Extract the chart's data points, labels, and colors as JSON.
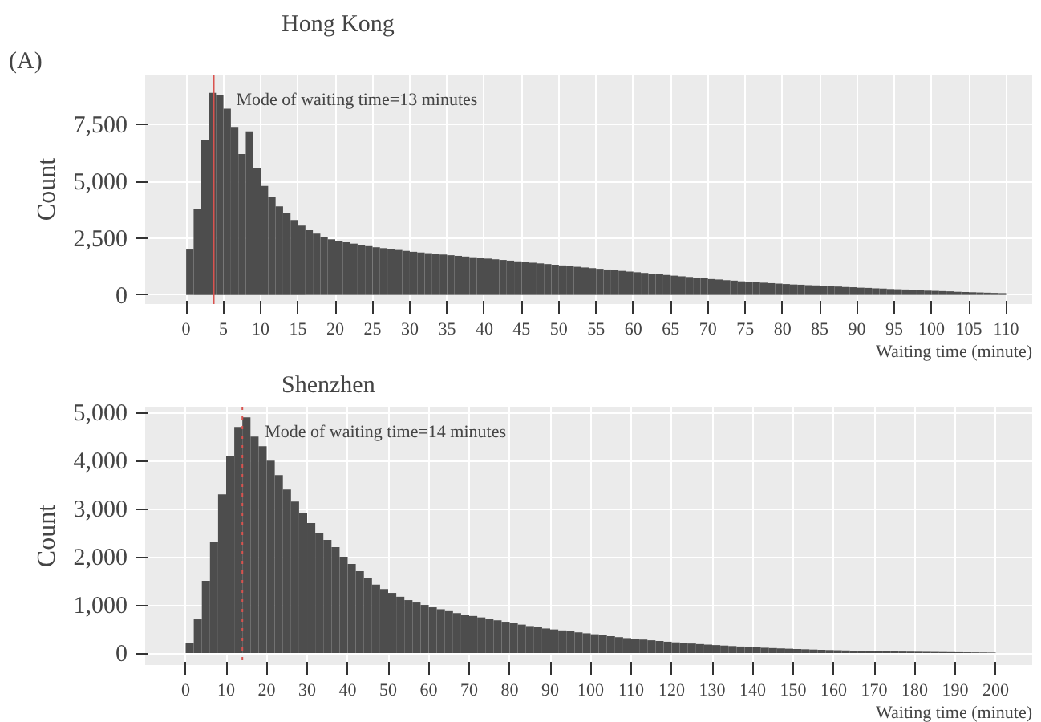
{
  "chart_data": [
    {
      "type": "histogram",
      "title": "Hong Kong",
      "xlabel": "Waiting time (minute)",
      "ylabel": "Count",
      "color": "#4d4d4d",
      "bins": [
        0,
        1,
        2,
        3,
        4,
        5,
        6,
        7,
        8,
        9,
        10,
        11,
        12,
        13,
        14,
        15,
        16,
        17,
        18,
        19,
        20,
        21,
        22,
        23,
        24,
        25,
        26,
        27,
        28,
        29,
        30,
        31,
        32,
        33,
        34,
        35,
        36,
        37,
        38,
        39,
        40,
        41,
        42,
        43,
        44,
        45,
        46,
        47,
        48,
        49,
        50,
        51,
        52,
        53,
        54,
        55,
        56,
        57,
        58,
        59,
        60,
        61,
        62,
        63,
        64,
        65,
        66,
        67,
        68,
        69,
        70,
        71,
        72,
        73,
        74,
        75,
        76,
        77,
        78,
        79,
        80,
        81,
        82,
        83,
        84,
        85,
        86,
        87,
        88,
        89,
        90,
        91,
        92,
        93,
        94,
        95,
        96,
        97,
        98,
        99,
        100,
        101,
        102,
        103,
        104,
        105,
        106,
        107,
        108,
        109,
        110
      ],
      "values": [
        2000,
        3800,
        6800,
        8900,
        8800,
        8200,
        7400,
        6200,
        7200,
        5600,
        4800,
        4300,
        3900,
        3600,
        3300,
        3050,
        2850,
        2700,
        2550,
        2450,
        2380,
        2320,
        2260,
        2200,
        2150,
        2100,
        2060,
        2020,
        1980,
        1940,
        1900,
        1870,
        1840,
        1810,
        1780,
        1750,
        1720,
        1690,
        1660,
        1630,
        1600,
        1570,
        1540,
        1510,
        1480,
        1450,
        1420,
        1390,
        1360,
        1330,
        1300,
        1270,
        1240,
        1210,
        1180,
        1150,
        1120,
        1090,
        1060,
        1030,
        1000,
        970,
        940,
        910,
        880,
        850,
        820,
        790,
        760,
        730,
        700,
        680,
        650,
        630,
        600,
        580,
        560,
        540,
        520,
        500,
        480,
        460,
        450,
        430,
        420,
        400,
        380,
        370,
        350,
        340,
        320,
        310,
        290,
        280,
        260,
        250,
        240,
        220,
        210,
        190,
        180,
        170,
        160,
        140,
        130,
        120,
        110,
        100,
        90,
        80
      ],
      "xlim": [
        -5.5,
        113.5
      ],
      "ylim": [
        -400,
        9700
      ],
      "xticks": [
        0,
        5,
        10,
        15,
        20,
        25,
        30,
        35,
        40,
        45,
        50,
        55,
        60,
        65,
        70,
        75,
        80,
        85,
        90,
        95,
        100,
        105,
        110
      ],
      "yticks": [
        {
          "value": 0,
          "label": "0"
        },
        {
          "value": 2500,
          "label": "2,500"
        },
        {
          "value": 5000,
          "label": "5,000"
        },
        {
          "value": 7500,
          "label": "7,500"
        }
      ],
      "ref_lines": [
        {
          "axis": "x",
          "value": 3.7,
          "color": "#d9534f",
          "line_style": "solid"
        }
      ],
      "annotations": [
        "(A)",
        "Mode of waiting time=13 minutes"
      ],
      "grid": true
    },
    {
      "type": "histogram",
      "title": "Shenzhen",
      "xlabel": "Waiting time (minute)",
      "ylabel": "Count",
      "color": "#4d4d4d",
      "bins": [
        0,
        2,
        4,
        6,
        8,
        10,
        12,
        14,
        16,
        18,
        20,
        22,
        24,
        26,
        28,
        30,
        32,
        34,
        36,
        38,
        40,
        42,
        44,
        46,
        48,
        50,
        52,
        54,
        56,
        58,
        60,
        62,
        64,
        66,
        68,
        70,
        72,
        74,
        76,
        78,
        80,
        82,
        84,
        86,
        88,
        90,
        92,
        94,
        96,
        98,
        100,
        102,
        104,
        106,
        108,
        110,
        112,
        114,
        116,
        118,
        120,
        122,
        124,
        126,
        128,
        130,
        132,
        134,
        136,
        138,
        140,
        142,
        144,
        146,
        148,
        150,
        152,
        154,
        156,
        158,
        160,
        162,
        164,
        166,
        168,
        170,
        172,
        174,
        176,
        178,
        180,
        182,
        184,
        186,
        188,
        190,
        192,
        194,
        196,
        198,
        200
      ],
      "values": [
        200,
        700,
        1500,
        2300,
        3300,
        4100,
        4700,
        4900,
        4500,
        4300,
        4000,
        3700,
        3400,
        3150,
        2900,
        2700,
        2500,
        2350,
        2200,
        2000,
        1850,
        1700,
        1550,
        1420,
        1330,
        1250,
        1170,
        1100,
        1050,
        1000,
        950,
        910,
        870,
        830,
        800,
        770,
        740,
        710,
        680,
        650,
        620,
        590,
        560,
        535,
        510,
        490,
        470,
        450,
        430,
        410,
        390,
        370,
        350,
        330,
        310,
        295,
        280,
        265,
        250,
        235,
        222,
        210,
        198,
        186,
        175,
        165,
        155,
        145,
        135,
        125,
        117,
        110,
        103,
        96,
        90,
        84,
        78,
        72,
        67,
        62,
        58,
        54,
        50,
        46,
        43,
        40,
        37,
        34,
        32,
        30,
        28,
        26,
        24,
        22,
        20,
        18,
        16,
        14,
        12,
        10
      ],
      "xlim": [
        -10,
        209
      ],
      "ylim": [
        -250,
        5120
      ],
      "xticks": [
        0,
        10,
        20,
        30,
        40,
        50,
        60,
        70,
        80,
        90,
        100,
        110,
        120,
        130,
        140,
        150,
        160,
        170,
        180,
        190,
        200
      ],
      "yticks": [
        {
          "value": 0,
          "label": "0"
        },
        {
          "value": 1000,
          "label": "1,000"
        },
        {
          "value": 2000,
          "label": "2,000"
        },
        {
          "value": 3000,
          "label": "3,000"
        },
        {
          "value": 4000,
          "label": "4,000"
        },
        {
          "value": 5000,
          "label": "5,000"
        }
      ],
      "ref_lines": [
        {
          "axis": "x",
          "value": 14,
          "color": "#d9534f",
          "line_style": "dotted"
        }
      ],
      "annotations": [
        "Mode of waiting time=14 minutes"
      ],
      "grid": true
    }
  ]
}
